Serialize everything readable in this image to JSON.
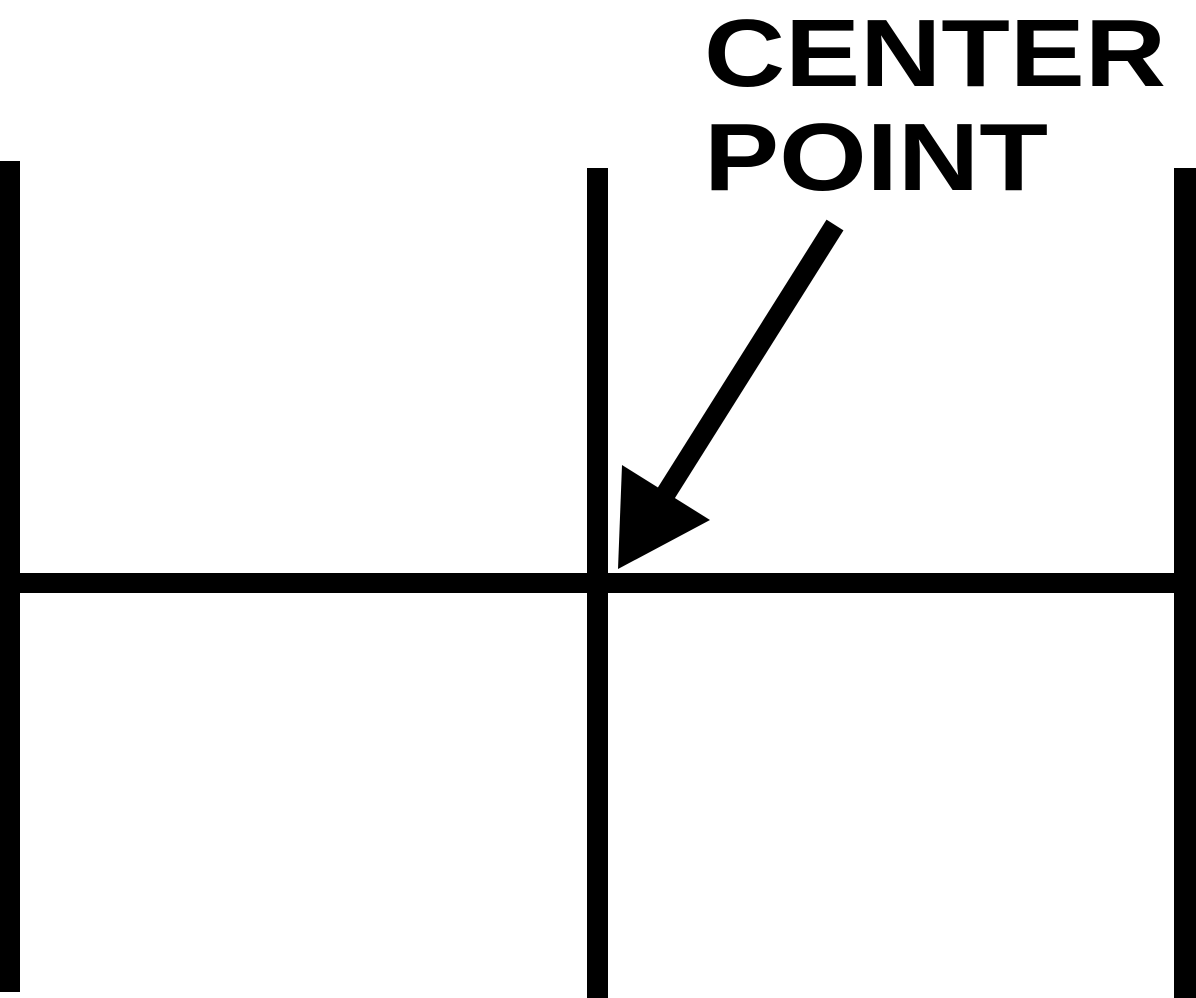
{
  "diagram": {
    "label": {
      "line1": "CENTER",
      "line2": "POINT"
    },
    "colors": {
      "ink": "#000000",
      "background": "#ffffff"
    }
  }
}
